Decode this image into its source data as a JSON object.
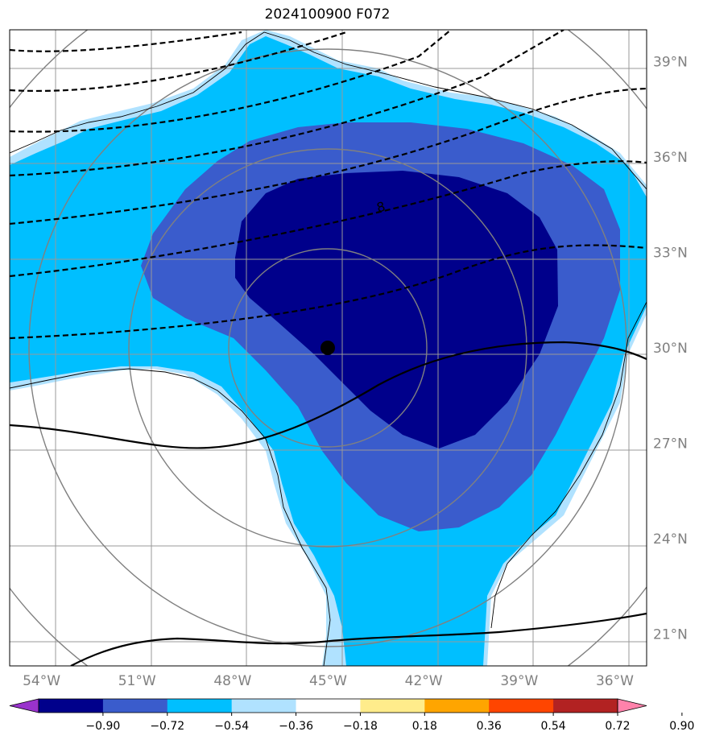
{
  "title": "2024100900 F072",
  "map": {
    "lon_range": [
      -55.0,
      -35.0
    ],
    "lat_range": [
      20.0,
      40.0
    ],
    "center_marker": {
      "lon": -45.5,
      "lat": 30.2
    },
    "lat_ticks": [
      {
        "value": 39,
        "label": "39°N"
      },
      {
        "value": 36,
        "label": "36°N"
      },
      {
        "value": 33,
        "label": "33°N"
      },
      {
        "value": 30,
        "label": "30°N"
      },
      {
        "value": 27,
        "label": "27°N"
      },
      {
        "value": 24,
        "label": "24°N"
      },
      {
        "value": 21,
        "label": "21°N"
      }
    ],
    "lon_ticks": [
      {
        "value": -54,
        "label": "54°W"
      },
      {
        "value": -51,
        "label": "51°W"
      },
      {
        "value": -48,
        "label": "48°W"
      },
      {
        "value": -45,
        "label": "45°W"
      },
      {
        "value": -42,
        "label": "42°W"
      },
      {
        "value": -39,
        "label": "39°W"
      },
      {
        "value": -36,
        "label": "36°W"
      }
    ],
    "contour_label": "8"
  },
  "colorbar": {
    "colors": [
      "#9932cc",
      "#00008b",
      "#3a5ccc",
      "#00bfff",
      "#b0e2ff",
      "#ffffff",
      "#ffec8b",
      "#ffa500",
      "#ff4500",
      "#b22222",
      "#ff82ab"
    ],
    "labels": [
      "−0.90",
      "−0.72",
      "−0.54",
      "−0.36",
      "−0.18",
      "0.18",
      "0.36",
      "0.54",
      "0.72",
      "0.90"
    ]
  }
}
